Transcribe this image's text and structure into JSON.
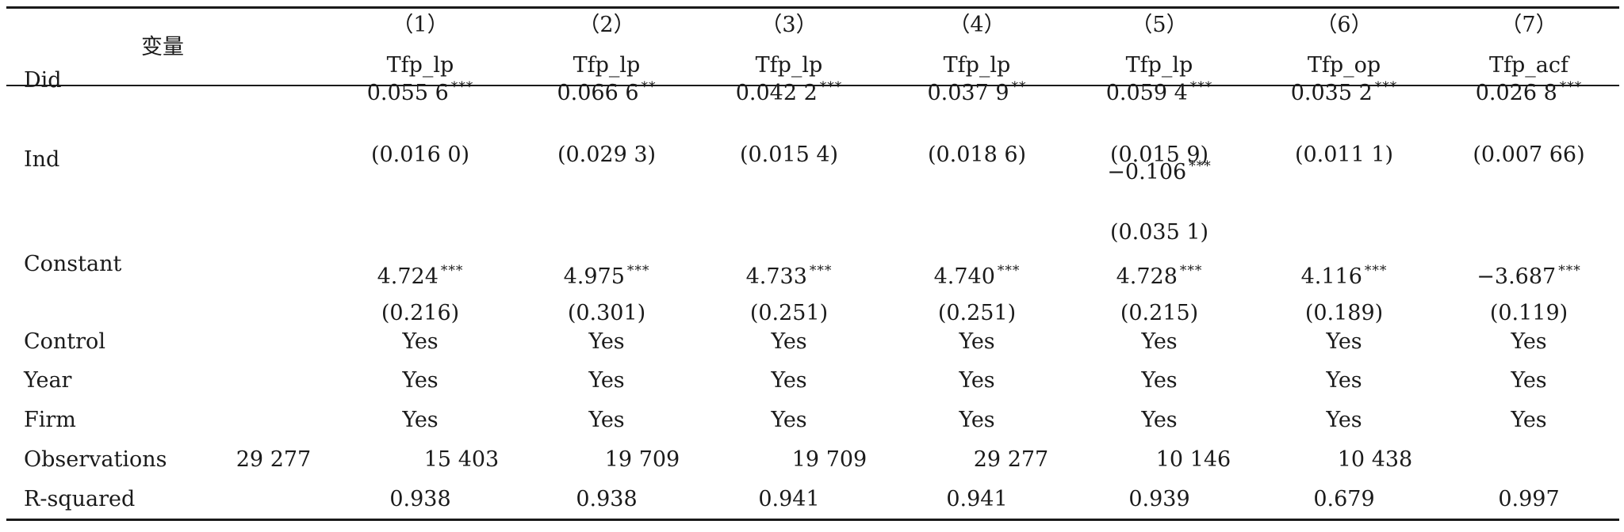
{
  "table": {
    "header": {
      "var_label": "变量",
      "columns": [
        {
          "num": "（1）",
          "dep": "Tfp_lp"
        },
        {
          "num": "（2）",
          "dep": "Tfp_lp"
        },
        {
          "num": "（3）",
          "dep": "Tfp_lp"
        },
        {
          "num": "（4）",
          "dep": "Tfp_lp"
        },
        {
          "num": "（5）",
          "dep": "Tfp_lp"
        },
        {
          "num": "（6）",
          "dep": "Tfp_op"
        },
        {
          "num": "（7）",
          "dep": "Tfp_acf"
        }
      ]
    },
    "rows": [
      {
        "label": "Did",
        "cells": [
          {
            "v": "0.055 6",
            "s": "***",
            "se": "(0.016 0)"
          },
          {
            "v": "0.066 6",
            "s": "**",
            "se": "(0.029 3)"
          },
          {
            "v": "0.042 2",
            "s": "***",
            "se": "(0.015 4)"
          },
          {
            "v": "0.037 9",
            "s": "**",
            "se": "(0.018 6)"
          },
          {
            "v": "0.059 4",
            "s": "***",
            "se": "(0.015 9)"
          },
          {
            "v": "0.035 2",
            "s": "***",
            "se": "(0.011 1)"
          },
          {
            "v": "0.026 8",
            "s": "***",
            "se": "(0.007 66)"
          }
        ]
      },
      {
        "label": "Ind",
        "cells": [
          null,
          null,
          null,
          null,
          {
            "v": "−0.106",
            "s": "***",
            "se": "(0.035 1)"
          },
          null,
          null
        ]
      },
      {
        "label": "Constant",
        "cells": [
          {
            "v": "4.724",
            "s": "***",
            "se": "(0.216)"
          },
          {
            "v": "4.975",
            "s": "***",
            "se": "(0.301)"
          },
          {
            "v": "4.733",
            "s": "***",
            "se": "(0.251)"
          },
          {
            "v": "4.740",
            "s": "***",
            "se": "(0.251)"
          },
          {
            "v": "4.728",
            "s": "***",
            "se": "(0.215)"
          },
          {
            "v": "4.116",
            "s": "***",
            "se": "(0.189)"
          },
          {
            "v": "−3.687",
            "s": "***",
            "se": "(0.119)"
          }
        ]
      }
    ],
    "controls": [
      {
        "label": "Control",
        "values": [
          "Yes",
          "Yes",
          "Yes",
          "Yes",
          "Yes",
          "Yes",
          "Yes"
        ]
      },
      {
        "label": "Year",
        "values": [
          "Yes",
          "Yes",
          "Yes",
          "Yes",
          "Yes",
          "Yes",
          "Yes"
        ]
      },
      {
        "label": "Firm",
        "values": [
          "Yes",
          "Yes",
          "Yes",
          "Yes",
          "Yes",
          "Yes",
          "Yes"
        ]
      }
    ],
    "observations": {
      "label": "Observations",
      "values": [
        "29 277",
        "15 403",
        "19 709",
        "19 709",
        "29 277",
        "10 146",
        "10 438"
      ]
    },
    "rsquared": {
      "label": "R-squared",
      "values": [
        "0.938",
        "0.938",
        "0.941",
        "0.941",
        "0.939",
        "0.679",
        "0.997"
      ]
    }
  }
}
